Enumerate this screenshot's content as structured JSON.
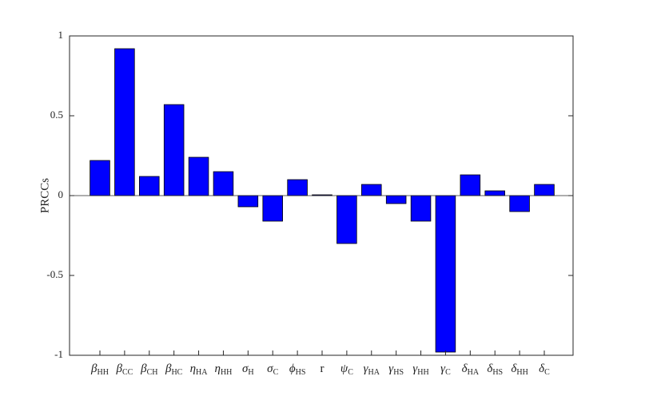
{
  "chart_data": {
    "type": "bar",
    "ylabel": "PRCCs",
    "categories": [
      {
        "base": "β",
        "sub": "HH"
      },
      {
        "base": "β",
        "sub": "CC"
      },
      {
        "base": "β",
        "sub": "CH"
      },
      {
        "base": "β",
        "sub": "HC"
      },
      {
        "base": "η",
        "sub": "HA"
      },
      {
        "base": "η",
        "sub": "HH"
      },
      {
        "base": "σ",
        "sub": "H"
      },
      {
        "base": "σ",
        "sub": "C"
      },
      {
        "base": "ϕ",
        "sub": "HS"
      },
      {
        "base": "r"
      },
      {
        "base": "ψ",
        "sub": "C"
      },
      {
        "base": "γ",
        "sub": "HA"
      },
      {
        "base": "γ",
        "sub": "HS"
      },
      {
        "base": "γ",
        "sub": "HH"
      },
      {
        "base": "γ",
        "sub": "C"
      },
      {
        "base": "δ",
        "sub": "HA"
      },
      {
        "base": "δ",
        "sub": "HS"
      },
      {
        "base": "δ",
        "sub": "HH"
      },
      {
        "base": "δ",
        "sub": "C"
      }
    ],
    "values": [
      0.22,
      0.92,
      0.12,
      0.57,
      0.24,
      0.15,
      -0.07,
      -0.16,
      0.1,
      0.005,
      -0.3,
      0.07,
      -0.05,
      -0.16,
      -0.98,
      0.13,
      0.03,
      -0.1,
      0.07
    ],
    "color": "#0000ff",
    "ylim": [
      -1,
      1
    ],
    "yticks": [
      -1,
      -0.5,
      0,
      0.5,
      1
    ]
  }
}
